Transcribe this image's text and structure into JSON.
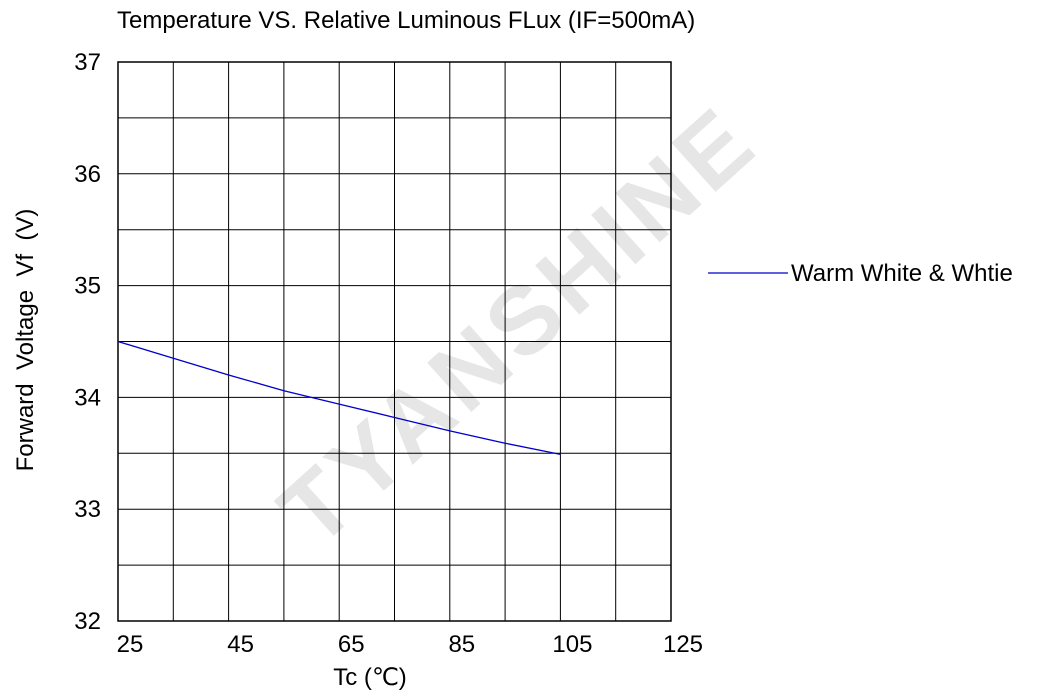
{
  "chart_data": {
    "type": "line",
    "title": "Temperature VS. Relative Luminous FLux (IF=500mA)",
    "xlabel": "Tc (℃)",
    "ylabel": "Forward  Voltage  Vf  (V)",
    "xlim": [
      25,
      125
    ],
    "ylim": [
      32,
      37
    ],
    "x_ticks": [
      25,
      45,
      65,
      85,
      105,
      125
    ],
    "y_ticks": [
      32,
      33,
      34,
      35,
      36,
      37
    ],
    "grid": true,
    "legend_position": "right",
    "series": [
      {
        "name": "Warm White & Whtie",
        "color": "#0000cc",
        "x": [
          25,
          35,
          45,
          55,
          65,
          75,
          85,
          95,
          105
        ],
        "y": [
          34.5,
          34.35,
          34.2,
          34.06,
          33.94,
          33.82,
          33.7,
          33.59,
          33.49
        ]
      }
    ]
  },
  "watermark": "TYANSHINE"
}
